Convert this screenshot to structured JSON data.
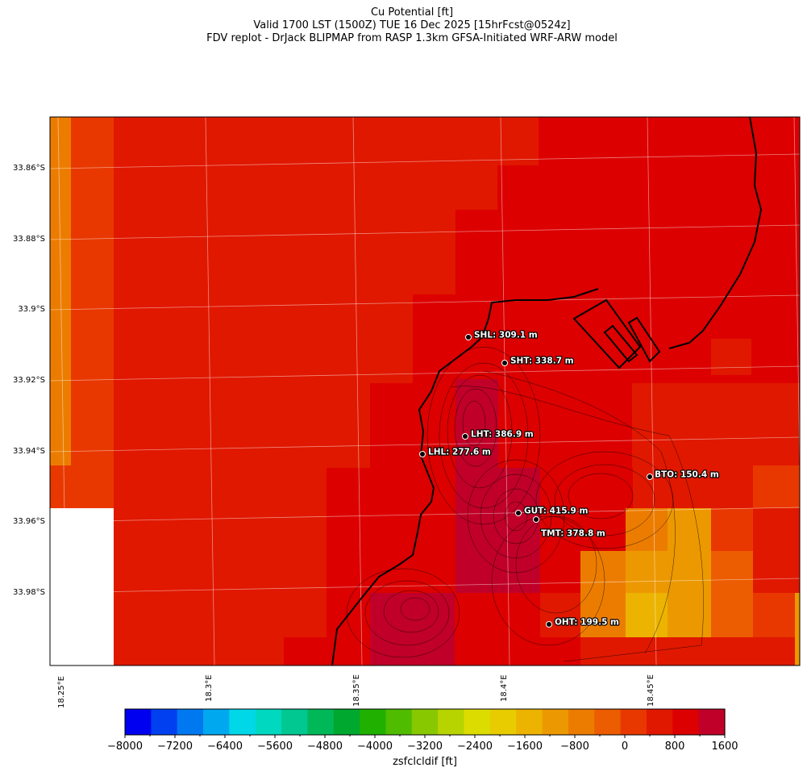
{
  "title": {
    "line1": "Cu Potential [ft]",
    "line2": "Valid 1700 LST (1500Z) TUE 16 Dec 2025 [15hrFcst@0524z]",
    "line3": "FDV replot - DrJack BLIPMAP from RASP 1.3km GFSA-Initiated WRF-ARW model"
  },
  "lat_ticks": [
    "33.86°S",
    "33.88°S",
    "33.9°S",
    "33.92°S",
    "33.94°S",
    "33.96°S",
    "33.98°S"
  ],
  "lon_ticks": [
    "18.25°E",
    "18.3°E",
    "18.35°E",
    "18.4°E",
    "18.45°E"
  ],
  "colorbar": {
    "label": "zsfclcldif [ft]",
    "min": -8000,
    "max": 1600,
    "step": 400,
    "tick_labels": [
      "−8000",
      "−7200",
      "−6400",
      "−5600",
      "−4800",
      "−4000",
      "−3200",
      "−2400",
      "−1600",
      "−800",
      "0",
      "800",
      "1600"
    ],
    "colors": [
      "#0000f0",
      "#0040f0",
      "#0078f0",
      "#00a8f0",
      "#00d8e8",
      "#00d8c0",
      "#00c890",
      "#00b858",
      "#00a830",
      "#20b000",
      "#50bc00",
      "#88c800",
      "#b8d400",
      "#dcdc00",
      "#e8cc00",
      "#ecb400",
      "#ec9800",
      "#ec7c00",
      "#ec5c00",
      "#e83800",
      "#e01800",
      "#dc0000",
      "#c00028"
    ]
  },
  "chart_data": {
    "type": "heatmap",
    "variable": "zsfclcldif",
    "units": "ft",
    "title": "Cu Potential [ft]",
    "lat_range": [
      "33.85°S",
      "33.995°S"
    ],
    "lon_range": [
      "18.247°E",
      "18.5°E"
    ],
    "colormap_range": [
      -8000,
      1600
    ],
    "sites": [
      {
        "code": "SHL",
        "label": "SHL: 309.1 m",
        "elevation_m": 309.1
      },
      {
        "code": "SHT",
        "label": "SHT: 338.7 m",
        "elevation_m": 338.7
      },
      {
        "code": "LHT",
        "label": "LHT: 386.9 m",
        "elevation_m": 386.9
      },
      {
        "code": "LHL",
        "label": "LHL: 277.6 m",
        "elevation_m": 277.6
      },
      {
        "code": "BTO",
        "label": "BTO: 150.4 m",
        "elevation_m": 150.4
      },
      {
        "code": "GUT",
        "label": "GUT: 415.9 m",
        "elevation_m": 415.9
      },
      {
        "code": "TMT",
        "label": "TMT: 378.8 m",
        "elevation_m": 378.8
      },
      {
        "code": "OHT",
        "label": "OHT: 199.5 m",
        "elevation_m": 199.5
      }
    ]
  }
}
